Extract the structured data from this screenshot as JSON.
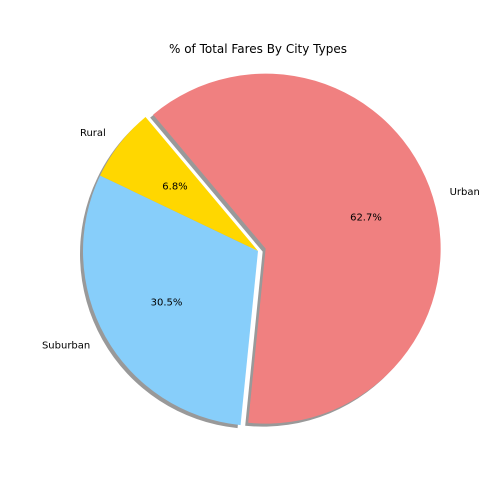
{
  "chart_data": {
    "type": "pie",
    "title": "% of Total Fares By City Types",
    "slices": [
      {
        "label": "Rural",
        "value": 6.8,
        "pct_label": "6.8%",
        "color": "#FFD700",
        "exploded": false
      },
      {
        "label": "Suburban",
        "value": 30.5,
        "pct_label": "30.5%",
        "color": "#87CEFA",
        "exploded": false
      },
      {
        "label": "Urban",
        "value": 62.7,
        "pct_label": "62.7%",
        "color": "#F08080",
        "exploded": true
      }
    ],
    "start_angle_deg": 130,
    "direction": "counterclockwise",
    "shadow": true,
    "legend": false
  }
}
